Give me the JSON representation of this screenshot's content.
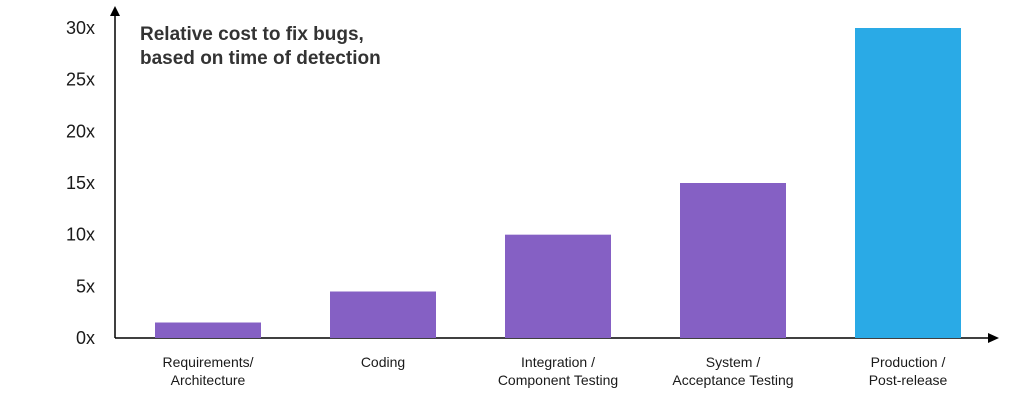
{
  "chart_data": {
    "type": "bar",
    "title": "Relative cost to fix bugs,\nbased on time of detection",
    "xlabel": "",
    "ylabel": "",
    "categories": [
      "Requirements/\nArchitecture",
      "Coding",
      "Integration /\nComponent Testing",
      "System /\nAcceptance Testing",
      "Production /\nPost-release"
    ],
    "values": [
      1.5,
      4.5,
      10,
      15,
      30
    ],
    "bar_colors": [
      "#8560c4",
      "#8560c4",
      "#8560c4",
      "#8560c4",
      "#2aaae6"
    ],
    "ylim": [
      0,
      30
    ],
    "yticks": [
      0,
      5,
      10,
      15,
      20,
      25,
      30
    ],
    "ytick_labels": [
      "0x",
      "5x",
      "10x",
      "15x",
      "20x",
      "25x",
      "30x"
    ],
    "grid": false,
    "legend": "none"
  }
}
